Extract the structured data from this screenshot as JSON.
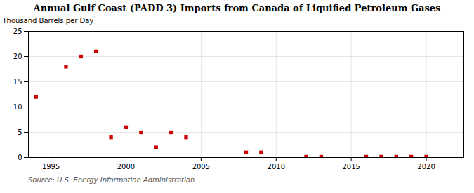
{
  "chart_data": {
    "type": "scatter",
    "title": "Annual Gulf Coast (PADD 3) Imports from Canada of Liquified Petroleum Gases",
    "ylabel": "Thousand Barrels per Day",
    "source": "Source: U.S. Energy Information Administration",
    "x": [
      1994,
      1996,
      1997,
      1998,
      1999,
      2000,
      2001,
      2002,
      2003,
      2004,
      2008,
      2009,
      2012,
      2013,
      2016,
      2017,
      2018,
      2019,
      2020
    ],
    "values": [
      12.0,
      18.0,
      20.0,
      21.0,
      4.0,
      6.0,
      5.0,
      2.0,
      5.0,
      4.0,
      1.0,
      1.0,
      0.15,
      0.15,
      0.15,
      0.15,
      0.15,
      0.15,
      0.15
    ],
    "color": "#cc0000",
    "marker": "square",
    "xlim": [
      1993.5,
      2022.5
    ],
    "ylim": [
      0,
      25
    ],
    "xticks": [
      1995,
      2000,
      2005,
      2010,
      2015,
      2020
    ],
    "yticks": [
      0,
      5,
      10,
      15,
      20,
      25
    ],
    "grid": true
  }
}
